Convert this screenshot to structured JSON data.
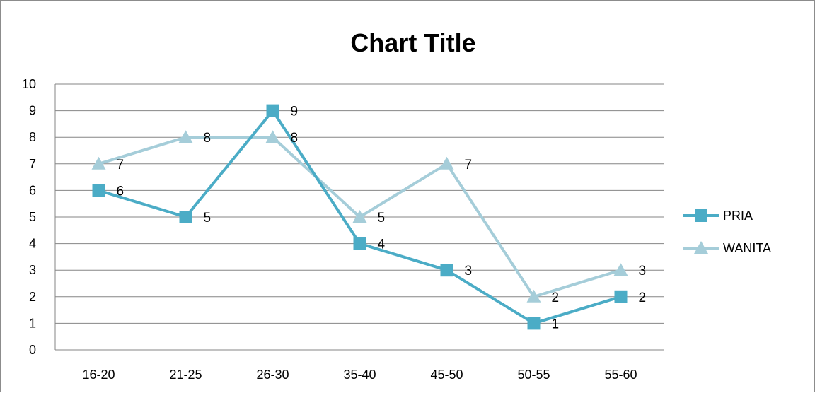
{
  "chart_data": {
    "type": "line",
    "title": "Chart Title",
    "categories": [
      "16-20",
      "21-25",
      "26-30",
      "35-40",
      "45-50",
      "50-55",
      "55-60"
    ],
    "ylim": [
      0,
      10
    ],
    "yticks": [
      0,
      1,
      2,
      3,
      4,
      5,
      6,
      7,
      8,
      9,
      10
    ],
    "grid": true,
    "legend_position": "right",
    "data_labels": true,
    "series": [
      {
        "name": "PRIA",
        "values": [
          6,
          5,
          9,
          4,
          3,
          1,
          2
        ],
        "color": "#4bacc6",
        "marker": "square"
      },
      {
        "name": "WANITA",
        "values": [
          7,
          8,
          8,
          5,
          7,
          2,
          3
        ],
        "color": "#a5cdd9",
        "marker": "triangle"
      }
    ]
  }
}
